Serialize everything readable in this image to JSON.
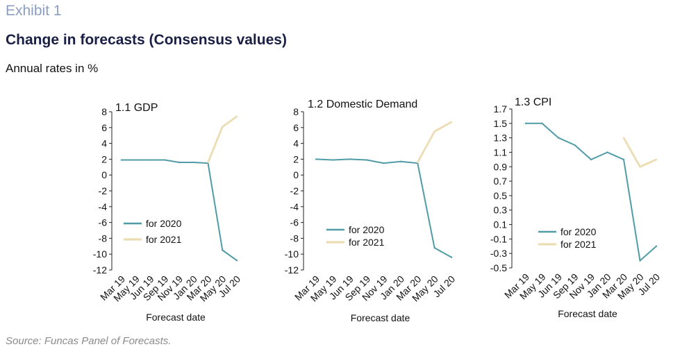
{
  "header": {
    "exhibit": "Exhibit 1",
    "title": "Change in forecasts (Consensus values)",
    "subtitle": "Annual rates in %",
    "source": "Source: Funcas Panel of Forecasts."
  },
  "colors": {
    "for2020": "#4f9ba6",
    "for2021": "#ecdcb2"
  },
  "chart_data": [
    {
      "type": "line",
      "title": "1.1 GDP",
      "xlabel": "Forecast date",
      "categories": [
        "Mar 19",
        "May 19",
        "Jun 19",
        "Sep 19",
        "Nov 19",
        "Jan 20",
        "Mar 20",
        "May 20",
        "Jul 20"
      ],
      "ylim": [
        -12,
        8
      ],
      "yticks": [
        8,
        6,
        4,
        2,
        0,
        -2,
        -4,
        -6,
        -8,
        -10,
        -12
      ],
      "ytick_labels": [
        "8",
        "6",
        "4",
        "2",
        "0",
        "-2",
        "-4",
        "-6",
        "-8",
        "-10",
        "-12"
      ],
      "legend_position": "bottom-left",
      "series": [
        {
          "name": "for 2020",
          "values": [
            1.9,
            1.9,
            1.9,
            1.9,
            1.6,
            1.6,
            1.5,
            -9.5,
            -10.8
          ]
        },
        {
          "name": "for 2021",
          "values": [
            null,
            null,
            null,
            null,
            null,
            null,
            1.6,
            6.1,
            7.4
          ]
        }
      ]
    },
    {
      "type": "line",
      "title": "1.2 Domestic Demand",
      "xlabel": "Forecast date",
      "categories": [
        "Mar 19",
        "May 19",
        "Jun 19",
        "Sep 19",
        "Nov 19",
        "Jan 20",
        "Mar 20",
        "May 20",
        "Jul 20"
      ],
      "ylim": [
        -12,
        8
      ],
      "yticks": [
        8,
        6,
        4,
        2,
        0,
        -2,
        -4,
        -6,
        -8,
        -10,
        -12
      ],
      "ytick_labels": [
        "8",
        "6",
        "4",
        "2",
        "0",
        "-2",
        "-4",
        "-6",
        "-8",
        "-10",
        "-12"
      ],
      "legend_position": "bottom-left",
      "series": [
        {
          "name": "for 2020",
          "values": [
            2.0,
            1.9,
            2.0,
            1.9,
            1.5,
            1.7,
            1.5,
            -9.2,
            -10.4
          ]
        },
        {
          "name": "for 2021",
          "values": [
            null,
            null,
            null,
            null,
            null,
            null,
            1.6,
            5.5,
            6.7
          ]
        }
      ]
    },
    {
      "type": "line",
      "title": "1.3 CPI",
      "xlabel": "Forecast date",
      "categories": [
        "Mar 19",
        "May 19",
        "Jun 19",
        "Sep 19",
        "Nov 19",
        "Jan 20",
        "Mar 20",
        "May 20",
        "Jul 20"
      ],
      "ylim": [
        -0.5,
        1.7
      ],
      "yticks": [
        1.7,
        1.5,
        1.3,
        1.1,
        0.9,
        0.7,
        0.5,
        0.3,
        0.1,
        -0.1,
        -0.3,
        -0.5
      ],
      "ytick_labels": [
        "1.7",
        "1.5",
        "1.3",
        "1.1",
        "0.9",
        "0.7",
        "0.5",
        "0.3",
        "0.1",
        "-0.1",
        "-0.3",
        "-0.5"
      ],
      "legend_position": "bottom-left",
      "series": [
        {
          "name": "for 2020",
          "values": [
            1.5,
            1.5,
            1.3,
            1.2,
            1.0,
            1.1,
            1.0,
            -0.4,
            -0.2
          ]
        },
        {
          "name": "for 2021",
          "values": [
            null,
            null,
            null,
            null,
            null,
            null,
            1.3,
            0.9,
            1.0
          ]
        }
      ]
    }
  ]
}
